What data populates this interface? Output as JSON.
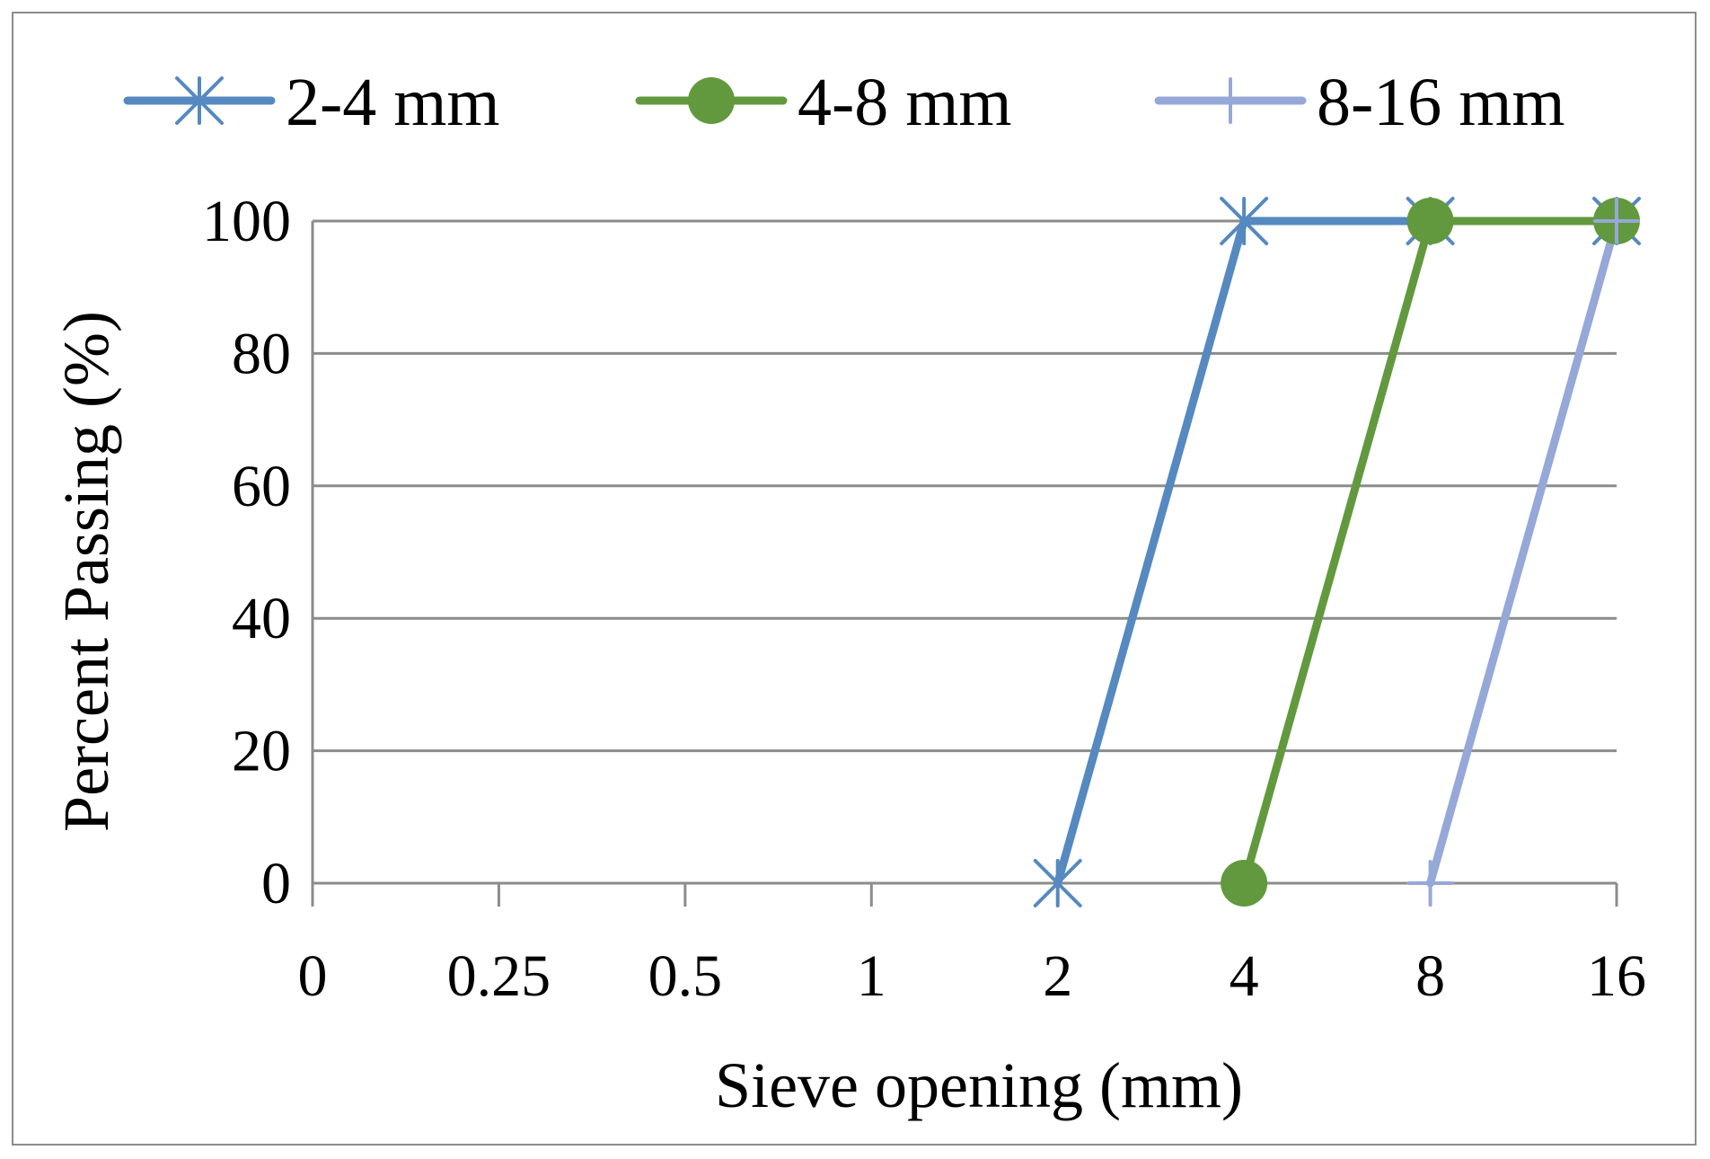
{
  "chart_data": {
    "type": "line",
    "title": "",
    "xlabel": "Sieve opening (mm)",
    "ylabel": "Percent Passing (%)",
    "x_scale": "categorical",
    "categories": [
      "0",
      "0.25",
      "0.5",
      "1",
      "2",
      "4",
      "8",
      "16"
    ],
    "ylim": [
      0,
      100
    ],
    "yticks": [
      0,
      20,
      40,
      60,
      80,
      100
    ],
    "grid": true,
    "legend_position": "top",
    "series": [
      {
        "name": "2-4 mm",
        "color": "#5589c0",
        "marker": "asterisk",
        "points": [
          {
            "x": "2",
            "y": 0
          },
          {
            "x": "4",
            "y": 100
          },
          {
            "x": "8",
            "y": 100
          },
          {
            "x": "16",
            "y": 100
          }
        ]
      },
      {
        "name": "4-8 mm",
        "color": "#62993e",
        "marker": "circle",
        "points": [
          {
            "x": "4",
            "y": 0
          },
          {
            "x": "8",
            "y": 100
          },
          {
            "x": "16",
            "y": 100
          }
        ]
      },
      {
        "name": "8-16 mm",
        "color": "#95a8d8",
        "marker": "plus",
        "points": [
          {
            "x": "8",
            "y": 0
          },
          {
            "x": "16",
            "y": 100
          }
        ]
      }
    ]
  }
}
